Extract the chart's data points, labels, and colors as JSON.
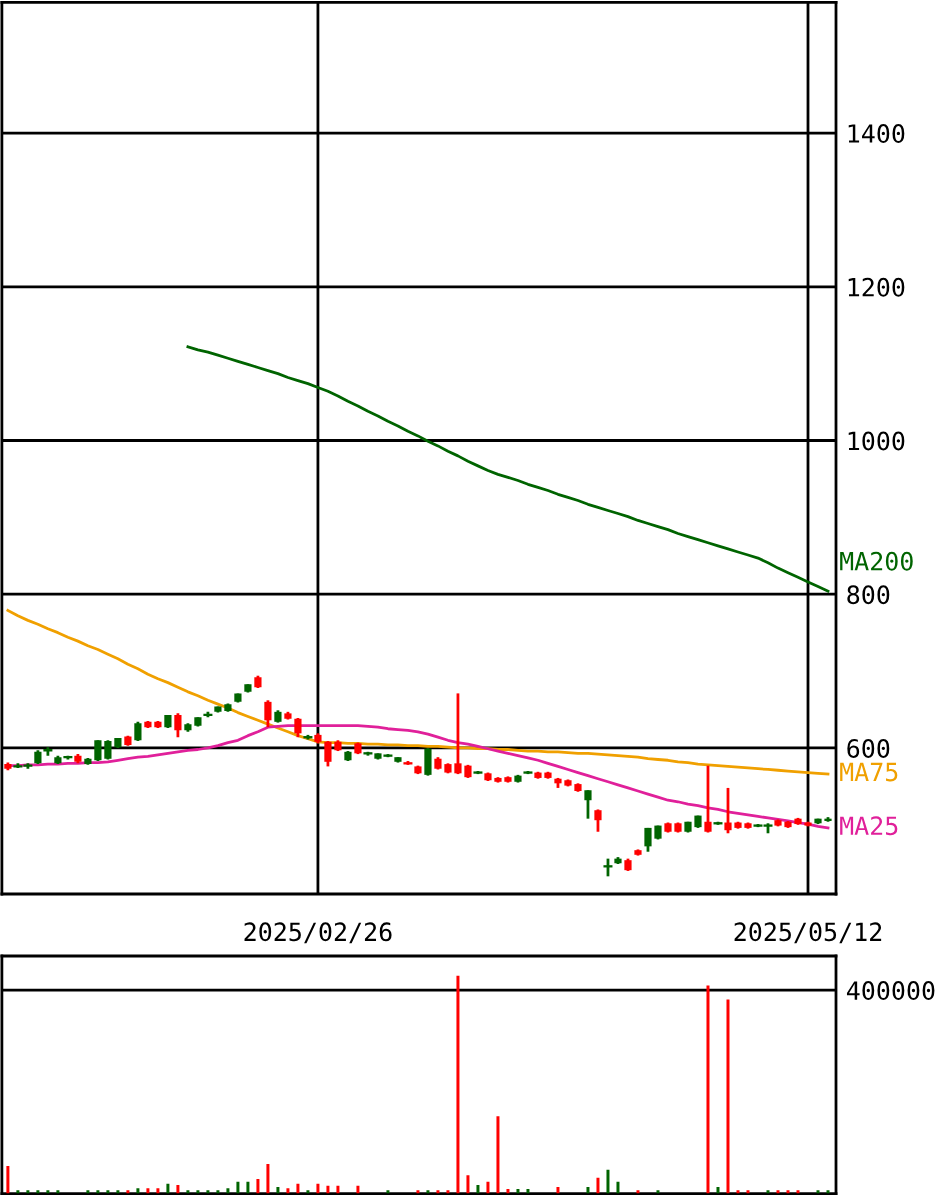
{
  "chart_data": [
    {
      "type": "candlestick",
      "categories": [
        null,
        null,
        null,
        null,
        null,
        null,
        null,
        null,
        null,
        null,
        null,
        null,
        null,
        null,
        null,
        null,
        null,
        null,
        null,
        null,
        null,
        null,
        null,
        null,
        null,
        null,
        null,
        null,
        null,
        null,
        null,
        "2025/02/26",
        null,
        null,
        null,
        null,
        null,
        null,
        null,
        null,
        null,
        null,
        null,
        null,
        null,
        null,
        null,
        null,
        null,
        null,
        null,
        null,
        null,
        null,
        null,
        null,
        null,
        null,
        null,
        null,
        null,
        null,
        null,
        null,
        null,
        null,
        null,
        null,
        null,
        null,
        null,
        null,
        null,
        null,
        null,
        null,
        null,
        null,
        null,
        null,
        "2025/05/12",
        null,
        null
      ],
      "ohlc": [
        [
          579,
          581,
          571,
          573
        ],
        [
          576,
          580,
          574,
          577
        ],
        [
          577,
          580,
          573,
          577
        ],
        [
          580,
          597,
          579,
          595
        ],
        [
          597,
          601,
          590,
          598
        ],
        [
          580,
          590,
          579,
          588
        ],
        [
          588,
          590,
          585,
          588
        ],
        [
          590,
          592,
          580,
          582
        ],
        [
          579,
          587,
          578,
          586
        ],
        [
          584,
          610,
          583,
          610
        ],
        [
          586,
          610,
          585,
          609
        ],
        [
          601,
          613,
          600,
          613
        ],
        [
          615,
          616,
          603,
          604
        ],
        [
          610,
          634,
          609,
          632
        ],
        [
          634,
          635,
          626,
          627
        ],
        [
          634,
          635,
          626,
          627
        ],
        [
          627,
          643,
          626,
          643
        ],
        [
          643,
          645,
          614,
          623
        ],
        [
          623,
          632,
          621,
          631
        ],
        [
          629,
          640,
          628,
          640
        ],
        [
          643,
          647,
          640,
          644
        ],
        [
          647,
          654,
          646,
          654
        ],
        [
          648,
          658,
          647,
          657
        ],
        [
          660,
          671,
          659,
          671
        ],
        [
          673,
          683,
          672,
          683
        ],
        [
          692,
          694,
          678,
          679
        ],
        [
          660,
          662,
          627,
          636
        ],
        [
          634,
          649,
          633,
          647
        ],
        [
          645,
          647,
          637,
          638
        ],
        [
          638,
          639,
          614,
          619
        ],
        [
          614,
          617,
          611,
          614
        ],
        [
          617,
          619,
          606,
          608
        ],
        [
          608,
          609,
          576,
          582
        ],
        [
          608,
          610,
          596,
          597
        ],
        [
          584,
          596,
          583,
          595
        ],
        [
          606,
          607,
          592,
          593
        ],
        [
          593,
          595,
          590,
          593
        ],
        [
          586,
          593,
          585,
          593
        ],
        [
          590,
          592,
          588,
          590
        ],
        [
          582,
          588,
          581,
          588
        ],
        [
          581,
          583,
          578,
          580
        ],
        [
          576,
          577,
          566,
          567
        ],
        [
          565,
          600,
          564,
          599
        ],
        [
          586,
          588,
          572,
          573
        ],
        [
          579,
          580,
          567,
          568
        ],
        [
          580,
          671,
          566,
          567
        ],
        [
          577,
          578,
          561,
          562
        ],
        [
          568,
          570,
          566,
          568
        ],
        [
          567,
          568,
          557,
          558
        ],
        [
          561,
          562,
          555,
          556
        ],
        [
          562,
          563,
          555,
          556
        ],
        [
          556,
          565,
          555,
          564
        ],
        [
          568,
          570,
          566,
          568
        ],
        [
          568,
          569,
          560,
          561
        ],
        [
          568,
          569,
          560,
          561
        ],
        [
          560,
          561,
          548,
          554
        ],
        [
          558,
          559,
          550,
          551
        ],
        [
          553,
          554,
          543,
          544
        ],
        [
          532,
          545,
          508,
          545
        ],
        [
          519,
          520,
          491,
          506
        ],
        [
          446,
          456,
          433,
          446
        ],
        [
          450,
          458,
          449,
          456
        ],
        [
          454,
          456,
          440,
          441
        ],
        [
          467,
          468,
          460,
          461
        ],
        [
          472,
          496,
          465,
          496
        ],
        [
          482,
          499,
          481,
          499
        ],
        [
          502,
          503,
          490,
          491
        ],
        [
          502,
          503,
          490,
          491
        ],
        [
          491,
          504,
          490,
          504
        ],
        [
          497,
          512,
          496,
          512
        ],
        [
          504,
          577,
          490,
          491
        ],
        [
          502,
          504,
          500,
          502
        ],
        [
          503,
          548,
          489,
          493
        ],
        [
          503,
          504,
          495,
          496
        ],
        [
          502,
          503,
          495,
          496
        ],
        [
          499,
          501,
          497,
          499
        ],
        [
          499,
          502,
          489,
          499
        ],
        [
          506,
          507,
          498,
          499
        ],
        [
          504,
          505,
          496,
          497
        ],
        [
          508,
          509,
          500,
          501
        ],
        [
          503,
          504,
          498,
          499
        ],
        [
          502,
          508,
          501,
          508
        ],
        [
          505,
          510,
          504,
          508
        ]
      ],
      "colors": [
        "#ff0000",
        "#006400",
        "#006400",
        "#006400",
        "#006400",
        "#006400",
        "#006400",
        "#ff0000",
        "#006400",
        "#006400",
        "#006400",
        "#006400",
        "#ff0000",
        "#006400",
        "#ff0000",
        "#ff0000",
        "#006400",
        "#ff0000",
        "#006400",
        "#006400",
        "#006400",
        "#006400",
        "#006400",
        "#006400",
        "#006400",
        "#ff0000",
        "#ff0000",
        "#006400",
        "#ff0000",
        "#ff0000",
        "#006400",
        "#ff0000",
        "#ff0000",
        "#ff0000",
        "#006400",
        "#ff0000",
        "#006400",
        "#006400",
        "#006400",
        "#006400",
        "#ff0000",
        "#ff0000",
        "#006400",
        "#ff0000",
        "#ff0000",
        "#ff0000",
        "#ff0000",
        "#006400",
        "#ff0000",
        "#ff0000",
        "#ff0000",
        "#006400",
        "#006400",
        "#ff0000",
        "#ff0000",
        "#ff0000",
        "#ff0000",
        "#ff0000",
        "#006400",
        "#ff0000",
        "#006400",
        "#006400",
        "#ff0000",
        "#ff0000",
        "#006400",
        "#006400",
        "#ff0000",
        "#ff0000",
        "#006400",
        "#006400",
        "#ff0000",
        "#006400",
        "#ff0000",
        "#ff0000",
        "#ff0000",
        "#006400",
        "#006400",
        "#ff0000",
        "#ff0000",
        "#ff0000",
        "#ff0000",
        "#006400",
        "#006400"
      ],
      "series": [
        {
          "name": "MA200",
          "type": "line",
          "color": "#006400",
          "values": [
            null,
            null,
            null,
            null,
            null,
            null,
            null,
            null,
            null,
            null,
            null,
            null,
            null,
            null,
            null,
            null,
            null,
            null,
            1122,
            1118,
            1115,
            1111,
            1107,
            1103,
            1099,
            1095,
            1091,
            1087,
            1082,
            1078,
            1074,
            1069,
            1064,
            1058,
            1051,
            1045,
            1038,
            1032,
            1025,
            1019,
            1012,
            1006,
            999,
            993,
            986,
            980,
            973,
            967,
            961,
            956,
            952,
            948,
            943,
            939,
            935,
            930,
            926,
            922,
            917,
            913,
            909,
            905,
            901,
            896,
            892,
            888,
            884,
            879,
            875,
            871,
            867,
            863,
            859,
            855,
            851,
            847,
            841,
            834,
            828,
            822,
            816,
            810,
            804
          ]
        },
        {
          "name": "MA75",
          "type": "line",
          "color": "#f0a000",
          "values": [
            779,
            772,
            766,
            761,
            755,
            750,
            744,
            739,
            733,
            728,
            722,
            716,
            709,
            703,
            696,
            690,
            685,
            679,
            673,
            668,
            662,
            657,
            652,
            646,
            641,
            636,
            631,
            626,
            621,
            616,
            612,
            608,
            607,
            607,
            606,
            606,
            605,
            605,
            604,
            604,
            603,
            603,
            602,
            602,
            601,
            600,
            600,
            599,
            599,
            598,
            598,
            597,
            596,
            596,
            595,
            595,
            594,
            593,
            593,
            592,
            591,
            590,
            589,
            588,
            586,
            585,
            584,
            582,
            581,
            579,
            578,
            577,
            576,
            575,
            574,
            573,
            572,
            571,
            570,
            569,
            568,
            567,
            566
          ]
        },
        {
          "name": "MA25",
          "type": "line",
          "color": "#e0209a",
          "values": [
            577,
            577,
            578,
            578,
            579,
            579,
            580,
            580,
            581,
            581,
            582,
            584,
            586,
            588,
            589,
            591,
            593,
            595,
            597,
            598,
            600,
            603,
            607,
            610,
            616,
            621,
            627,
            628,
            629,
            629,
            629,
            629,
            629,
            629,
            629,
            629,
            628,
            627,
            625,
            624,
            623,
            621,
            618,
            614,
            610,
            607,
            605,
            602,
            599,
            596,
            593,
            590,
            587,
            584,
            580,
            576,
            572,
            568,
            564,
            560,
            556,
            552,
            548,
            544,
            540,
            536,
            532,
            530,
            527,
            525,
            522,
            520,
            517,
            515,
            513,
            511,
            509,
            507,
            505,
            503,
            501,
            498,
            496
          ]
        }
      ],
      "ylim": [
        410,
        1570
      ],
      "yticks": [
        600,
        800,
        1000,
        1200,
        1400
      ],
      "grid": true,
      "legend": false
    },
    {
      "type": "bar",
      "categories": [
        null,
        null,
        null,
        null,
        null,
        null,
        null,
        null,
        null,
        null,
        null,
        null,
        null,
        null,
        null,
        null,
        null,
        null,
        null,
        null,
        null,
        null,
        null,
        null,
        null,
        null,
        null,
        null,
        null,
        null,
        null,
        "2025/02/26",
        null,
        null,
        null,
        null,
        null,
        null,
        null,
        null,
        null,
        null,
        null,
        null,
        null,
        null,
        null,
        null,
        null,
        null,
        null,
        null,
        null,
        null,
        null,
        null,
        null,
        null,
        null,
        null,
        null,
        null,
        null,
        null,
        null,
        null,
        null,
        null,
        null,
        null,
        null,
        null,
        null,
        null,
        null,
        null,
        null,
        null,
        null,
        null,
        "2025/05/12",
        null,
        null
      ],
      "values": [
        54500,
        6500,
        6500,
        6500,
        6500,
        6500,
        0,
        0,
        6500,
        6500,
        6500,
        6500,
        6500,
        10400,
        10400,
        10400,
        19500,
        16900,
        6500,
        6500,
        6500,
        6500,
        10400,
        23400,
        23400,
        28600,
        58400,
        13000,
        10400,
        19500,
        6500,
        19500,
        15600,
        15600,
        0,
        15600,
        0,
        0,
        6500,
        0,
        0,
        6500,
        6500,
        6500,
        6500,
        428000,
        36300,
        16900,
        23400,
        151900,
        9100,
        9100,
        9100,
        0,
        0,
        13000,
        0,
        0,
        13000,
        31200,
        46700,
        23400,
        0,
        6500,
        0,
        6500,
        0,
        0,
        0,
        0,
        408900,
        13000,
        381600,
        6500,
        6500,
        0,
        6500,
        6500,
        6500,
        6500,
        0,
        6500,
        6500
      ],
      "colors": [
        "#ff0000",
        "#006400",
        "#006400",
        "#006400",
        "#006400",
        "#006400",
        "#006400",
        "#ff0000",
        "#006400",
        "#006400",
        "#006400",
        "#006400",
        "#ff0000",
        "#006400",
        "#ff0000",
        "#ff0000",
        "#006400",
        "#ff0000",
        "#006400",
        "#006400",
        "#006400",
        "#006400",
        "#006400",
        "#006400",
        "#006400",
        "#ff0000",
        "#ff0000",
        "#006400",
        "#ff0000",
        "#ff0000",
        "#006400",
        "#ff0000",
        "#ff0000",
        "#ff0000",
        "#006400",
        "#ff0000",
        "#006400",
        "#006400",
        "#006400",
        "#006400",
        "#ff0000",
        "#ff0000",
        "#006400",
        "#ff0000",
        "#ff0000",
        "#ff0000",
        "#ff0000",
        "#006400",
        "#ff0000",
        "#ff0000",
        "#ff0000",
        "#006400",
        "#006400",
        "#ff0000",
        "#ff0000",
        "#ff0000",
        "#ff0000",
        "#ff0000",
        "#006400",
        "#ff0000",
        "#006400",
        "#006400",
        "#ff0000",
        "#ff0000",
        "#006400",
        "#006400",
        "#ff0000",
        "#ff0000",
        "#006400",
        "#006400",
        "#ff0000",
        "#006400",
        "#ff0000",
        "#ff0000",
        "#ff0000",
        "#006400",
        "#006400",
        "#ff0000",
        "#ff0000",
        "#ff0000",
        "#ff0000",
        "#006400",
        "#006400"
      ],
      "ylim": [
        0,
        467000
      ],
      "yticks": [
        400000
      ],
      "grid": "y",
      "tick_labels": "y"
    }
  ]
}
